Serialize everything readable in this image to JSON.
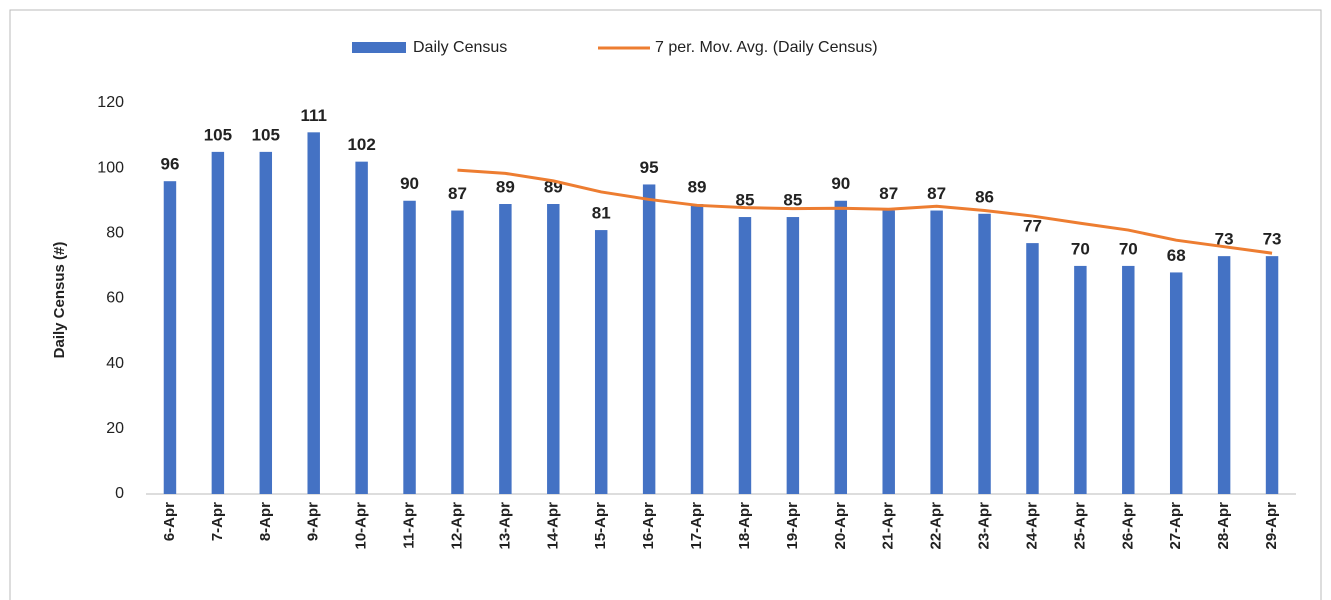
{
  "chart_data": {
    "type": "bar",
    "y_label": "Daily Census (#)",
    "categories": [
      "6-Apr",
      "7-Apr",
      "8-Apr",
      "9-Apr",
      "10-Apr",
      "11-Apr",
      "12-Apr",
      "13-Apr",
      "14-Apr",
      "15-Apr",
      "16-Apr",
      "17-Apr",
      "18-Apr",
      "19-Apr",
      "20-Apr",
      "21-Apr",
      "22-Apr",
      "23-Apr",
      "24-Apr",
      "25-Apr",
      "26-Apr",
      "27-Apr",
      "28-Apr",
      "29-Apr"
    ],
    "series": [
      {
        "name": "Daily Census",
        "type": "bar",
        "color": "#4472c4",
        "values": [
          96,
          105,
          105,
          111,
          102,
          90,
          87,
          89,
          89,
          81,
          95,
          89,
          85,
          85,
          90,
          87,
          87,
          86,
          77,
          70,
          70,
          68,
          73,
          73
        ]
      },
      {
        "name": "7 per. Mov. Avg. (Daily Census)",
        "type": "line",
        "color": "#ed7d31",
        "values": [
          null,
          null,
          null,
          null,
          null,
          null,
          99.4,
          98.4,
          96.1,
          92.7,
          90.4,
          88.6,
          87.9,
          87.6,
          87.7,
          87.4,
          88.3,
          87,
          85.3,
          83.1,
          81,
          77.9,
          75.9,
          73.9
        ]
      }
    ],
    "ylim": [
      0,
      120
    ],
    "yticks": [
      0,
      20,
      40,
      60,
      80,
      100,
      120
    ],
    "grid": false,
    "legend": "top"
  }
}
